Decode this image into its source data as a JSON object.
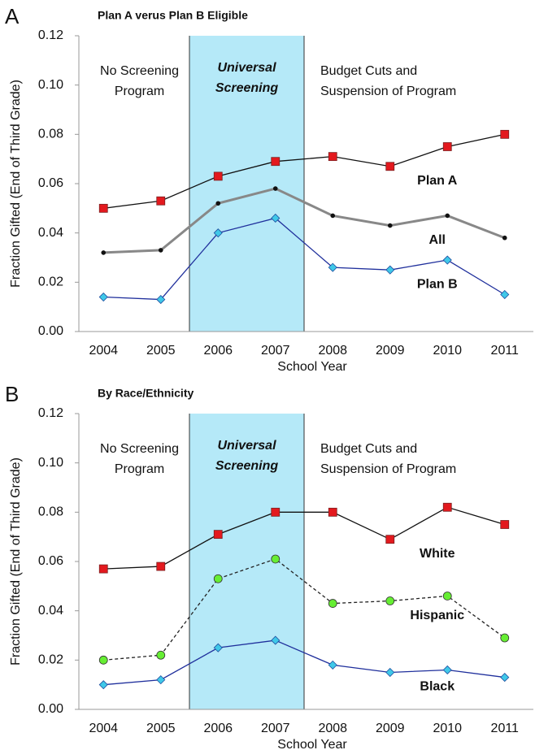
{
  "chart_data": [
    {
      "type": "line",
      "panel": "A",
      "title": "Plan A verus Plan B Eligible",
      "x_label": "School Year",
      "y_label": "Fraction Gifted (End of Third Grade)",
      "categories": [
        "2004",
        "2005",
        "2006",
        "2007",
        "2008",
        "2009",
        "2010",
        "2011"
      ],
      "ylim": [
        0,
        0.12
      ],
      "yticks": [
        {
          "value": 0,
          "label": "0.00"
        },
        {
          "value": 0.02,
          "label": "0.02"
        },
        {
          "value": 0.04,
          "label": "0.04"
        },
        {
          "value": 0.06,
          "label": "0.06"
        },
        {
          "value": 0.08,
          "label": "0.08"
        },
        {
          "value": 0.1,
          "label": "0.10"
        },
        {
          "value": 0.12,
          "label": "0.12"
        }
      ],
      "shaded": {
        "lines": [
          "Universal",
          "Screening"
        ],
        "from": "2006",
        "to": "2007",
        "color": "#b5e9f8"
      },
      "annotations": [
        {
          "lines": [
            "No Screening",
            "Program"
          ],
          "side": "left"
        },
        {
          "lines": [
            "Budget Cuts and",
            "Suspension of Program"
          ],
          "side": "right"
        }
      ],
      "series": [
        {
          "name": "Plan A",
          "color": "#111111",
          "marker": "square",
          "marker_color": "#e3191e",
          "values": [
            0.05,
            0.053,
            0.063,
            0.069,
            0.071,
            0.067,
            0.075,
            0.08
          ]
        },
        {
          "name": "All",
          "color": "#888888",
          "marker": "dot",
          "marker_color": "#111111",
          "values": [
            0.032,
            0.033,
            0.052,
            0.058,
            0.047,
            0.043,
            0.047,
            0.038
          ]
        },
        {
          "name": "Plan B",
          "color": "#1f2f9c",
          "marker": "diamond",
          "marker_color": "#3fc8e8",
          "values": [
            0.014,
            0.013,
            0.04,
            0.046,
            0.026,
            0.025,
            0.029,
            0.015
          ]
        }
      ]
    },
    {
      "type": "line",
      "panel": "B",
      "title": "By Race/Ethnicity",
      "x_label": "School Year",
      "y_label": "Fraction Gifted (End of Third Grade)",
      "categories": [
        "2004",
        "2005",
        "2006",
        "2007",
        "2008",
        "2009",
        "2010",
        "2011"
      ],
      "ylim": [
        0,
        0.12
      ],
      "yticks": [
        {
          "value": 0,
          "label": "0.00"
        },
        {
          "value": 0.02,
          "label": "0.02"
        },
        {
          "value": 0.04,
          "label": "0.04"
        },
        {
          "value": 0.06,
          "label": "0.06"
        },
        {
          "value": 0.08,
          "label": "0.08"
        },
        {
          "value": 0.1,
          "label": "0.10"
        },
        {
          "value": 0.12,
          "label": "0.12"
        }
      ],
      "shaded": {
        "lines": [
          "Universal",
          "Screening"
        ],
        "from": "2006",
        "to": "2007",
        "color": "#b5e9f8"
      },
      "annotations": [
        {
          "lines": [
            "No Screening",
            "Program"
          ],
          "side": "left"
        },
        {
          "lines": [
            "Budget Cuts and",
            "Suspension of Program"
          ],
          "side": "right"
        }
      ],
      "series": [
        {
          "name": "White",
          "color": "#111111",
          "marker": "square",
          "marker_color": "#e3191e",
          "values": [
            0.057,
            0.058,
            0.071,
            0.08,
            0.08,
            0.069,
            0.082,
            0.075
          ]
        },
        {
          "name": "Hispanic",
          "color": "#222222",
          "dash": true,
          "marker": "circle",
          "marker_color": "#66ee33",
          "values": [
            0.02,
            0.022,
            0.053,
            0.061,
            0.043,
            0.044,
            0.046,
            0.029
          ]
        },
        {
          "name": "Black",
          "color": "#1f2f9c",
          "marker": "diamond",
          "marker_color": "#3fc8e8",
          "values": [
            0.01,
            0.012,
            0.025,
            0.028,
            0.018,
            0.015,
            0.016,
            0.013
          ]
        }
      ]
    }
  ]
}
